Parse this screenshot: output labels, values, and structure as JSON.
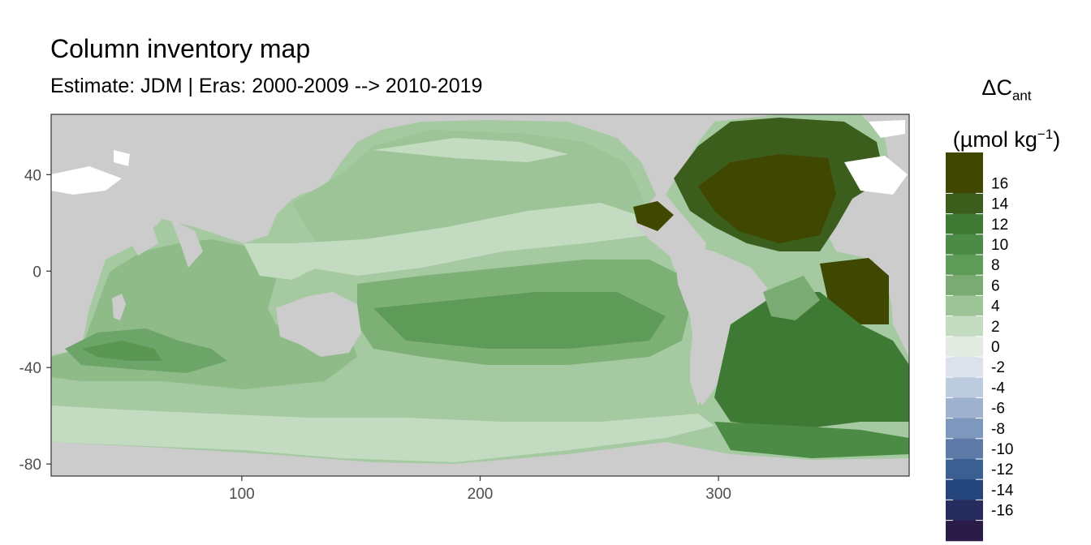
{
  "title": "Column inventory map",
  "subtitle": "Estimate: JDM  | Eras: 2000-2009 --> 2010-2019",
  "legend": {
    "symbol": "ΔC",
    "subscript": "ant",
    "unit_prefix": "(µmol kg",
    "unit_sup": "−1",
    "unit_suffix": ")",
    "bins": [
      {
        "label": "",
        "color": "#3f4700"
      },
      {
        "label": "16",
        "color": "#3f4700"
      },
      {
        "label": "14",
        "color": "#3c5e1d"
      },
      {
        "label": "12",
        "color": "#3e7a33"
      },
      {
        "label": "10",
        "color": "#4b8b45"
      },
      {
        "label": "8",
        "color": "#5f9b58"
      },
      {
        "label": "6",
        "color": "#79ab72"
      },
      {
        "label": "4",
        "color": "#9cc496"
      },
      {
        "label": "2",
        "color": "#c3dcc1"
      },
      {
        "label": "0",
        "color": "#e1ebe1"
      },
      {
        "label": "-2",
        "color": "#dbe2ec"
      },
      {
        "label": "-4",
        "color": "#bdcbdf"
      },
      {
        "label": "-6",
        "color": "#9eb2cf"
      },
      {
        "label": "-8",
        "color": "#7e97bc"
      },
      {
        "label": "-10",
        "color": "#5e7ba7"
      },
      {
        "label": "-12",
        "color": "#3c5f91"
      },
      {
        "label": "-14",
        "color": "#25457d"
      },
      {
        "label": "-16",
        "color": "#262c5e"
      },
      {
        "label": "",
        "color": "#2a1b48"
      }
    ]
  },
  "chart_data": {
    "type": "heatmap",
    "title": "Column inventory map",
    "subtitle": "Estimate: JDM  | Eras: 2000-2009 --> 2010-2019",
    "xlabel": "",
    "ylabel": "",
    "xlim": [
      20,
      380
    ],
    "ylim": [
      -85,
      65
    ],
    "x_ticks": [
      100,
      200,
      300
    ],
    "y_ticks": [
      40,
      0,
      -40,
      -80
    ],
    "land_color": "#cccccc",
    "missing_color": "#ffffff",
    "grid": false
  }
}
